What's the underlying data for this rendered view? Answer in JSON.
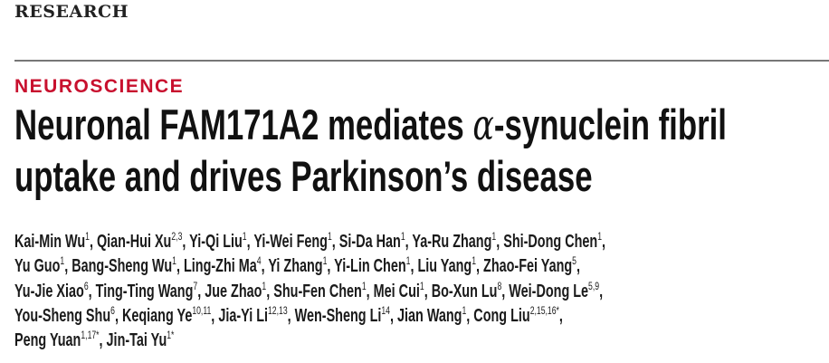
{
  "section": "RESEARCH",
  "kicker": "NEUROSCIENCE",
  "title": {
    "line1_before": "Neuronal FAM171A2 mediates ",
    "alpha": "α",
    "line1_after": "-synuclein fibril",
    "line2": "uptake and drives Parkinson’s disease"
  },
  "authors": [
    {
      "name": "Kai-Min Wu",
      "aff": "1"
    },
    {
      "name": "Qian-Hui Xu",
      "aff": "2,3"
    },
    {
      "name": "Yi-Qi Liu",
      "aff": "1"
    },
    {
      "name": "Yi-Wei Feng",
      "aff": "1"
    },
    {
      "name": "Si-Da Han",
      "aff": "1"
    },
    {
      "name": "Ya-Ru Zhang",
      "aff": "1"
    },
    {
      "name": "Shi-Dong Chen",
      "aff": "1"
    },
    {
      "name": "Yu Guo",
      "aff": "1"
    },
    {
      "name": "Bang-Sheng Wu",
      "aff": "1"
    },
    {
      "name": "Ling-Zhi Ma",
      "aff": "4"
    },
    {
      "name": "Yi Zhang",
      "aff": "1"
    },
    {
      "name": "Yi-Lin Chen",
      "aff": "1"
    },
    {
      "name": "Liu Yang",
      "aff": "1"
    },
    {
      "name": "Zhao-Fei Yang",
      "aff": "5"
    },
    {
      "name": "Yu-Jie Xiao",
      "aff": "6"
    },
    {
      "name": "Ting-Ting Wang",
      "aff": "7"
    },
    {
      "name": "Jue Zhao",
      "aff": "1"
    },
    {
      "name": "Shu-Fen Chen",
      "aff": "1"
    },
    {
      "name": "Mei Cui",
      "aff": "1"
    },
    {
      "name": "Bo-Xun Lu",
      "aff": "8"
    },
    {
      "name": "Wei-Dong Le",
      "aff": "5,9"
    },
    {
      "name": "You-Sheng Shu",
      "aff": "6"
    },
    {
      "name": "Keqiang Ye",
      "aff": "10,11"
    },
    {
      "name": "Jia-Yi Li",
      "aff": "12,13"
    },
    {
      "name": "Wen-Sheng Li",
      "aff": "14"
    },
    {
      "name": "Jian Wang",
      "aff": "1"
    },
    {
      "name": "Cong Liu",
      "aff": "2,15,16*"
    },
    {
      "name": "Peng Yuan",
      "aff": "1,17*"
    },
    {
      "name": "Jin-Tai Yu",
      "aff": "1*"
    }
  ]
}
